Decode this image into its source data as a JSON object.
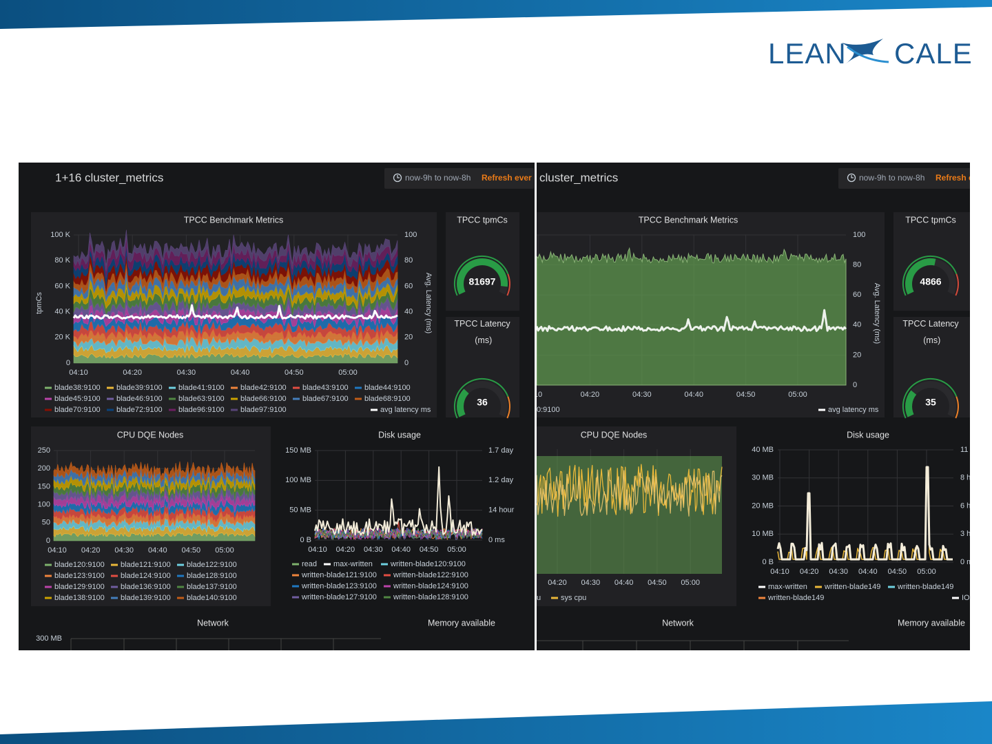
{
  "logo": {
    "left": "LEAN",
    "right": "CALE"
  },
  "dashboards": [
    {
      "title": "1+16 cluster_metrics",
      "time_range": "now-9h to now-8h",
      "refresh": "Refresh ever",
      "benchmark": {
        "title": "TPCC Benchmark Metrics",
        "y_label": "tpmCs",
        "y2_label": "Avg. Latency (ms)",
        "yticks": [
          "100 K",
          "80 K",
          "60 K",
          "40 K",
          "20 K",
          0
        ],
        "y2ticks": [
          100,
          80,
          60,
          40,
          20,
          0
        ],
        "xticks": [
          "04:10",
          "04:20",
          "04:30",
          "04:40",
          "04:50",
          "05:00"
        ],
        "legend": [
          {
            "name": "blade38:9100",
            "color": "#7eb26d"
          },
          {
            "name": "blade39:9100",
            "color": "#eab839"
          },
          {
            "name": "blade41:9100",
            "color": "#6ed0e0"
          },
          {
            "name": "blade42:9100",
            "color": "#ef843c"
          },
          {
            "name": "blade43:9100",
            "color": "#e24d42"
          },
          {
            "name": "blade44:9100",
            "color": "#1f78c1"
          },
          {
            "name": "blade45:9100",
            "color": "#ba43a9"
          },
          {
            "name": "blade46:9100",
            "color": "#705da0"
          },
          {
            "name": "blade63:9100",
            "color": "#508642"
          },
          {
            "name": "blade66:9100",
            "color": "#cca300"
          },
          {
            "name": "blade67:9100",
            "color": "#447ebc"
          },
          {
            "name": "blade68:9100",
            "color": "#c15c17"
          },
          {
            "name": "blade70:9100",
            "color": "#890f02"
          },
          {
            "name": "blade72:9100",
            "color": "#0a437c"
          },
          {
            "name": "blade96:9100",
            "color": "#6d1f62"
          },
          {
            "name": "blade97:9100",
            "color": "#584477"
          },
          {
            "name": "avg latency ms",
            "color": "#ffffff"
          }
        ]
      },
      "gauges": [
        {
          "title": "TPCC tpmCs",
          "value": 81697
        },
        {
          "title": "TPCC Latency (ms)",
          "value": 36
        }
      ],
      "cpu": {
        "title": "CPU DQE Nodes",
        "yticks": [
          250,
          200,
          150,
          100,
          50,
          0
        ],
        "xticks": [
          "04:10",
          "04:20",
          "04:30",
          "04:40",
          "04:50",
          "05:00"
        ],
        "legend": [
          {
            "name": "blade120:9100",
            "color": "#7eb26d"
          },
          {
            "name": "blade121:9100",
            "color": "#eab839"
          },
          {
            "name": "blade122:9100",
            "color": "#6ed0e0"
          },
          {
            "name": "blade123:9100",
            "color": "#ef843c"
          },
          {
            "name": "blade124:9100",
            "color": "#e24d42"
          },
          {
            "name": "blade128:9100",
            "color": "#1f78c1"
          },
          {
            "name": "blade129:9100",
            "color": "#ba43a9"
          },
          {
            "name": "blade136:9100",
            "color": "#705da0"
          },
          {
            "name": "blade137:9100",
            "color": "#508642"
          },
          {
            "name": "blade138:9100",
            "color": "#cca300"
          },
          {
            "name": "blade139:9100",
            "color": "#447ebc"
          },
          {
            "name": "blade140:9100",
            "color": "#c15c17"
          }
        ]
      },
      "disk": {
        "title": "Disk usage",
        "yticks": [
          "150 MB",
          "100 MB",
          "50 MB",
          "0 B"
        ],
        "y2ticks": [
          "1.7 day",
          "1.2 day",
          "14 hour",
          "0 ms"
        ],
        "xticks": [
          "04:10",
          "04:20",
          "04:30",
          "04:40",
          "04:50",
          "05:00"
        ],
        "legend": [
          {
            "name": "read",
            "color": "#7eb26d"
          },
          {
            "name": "max-written",
            "color": "#ffffff"
          },
          {
            "name": "written-blade120:9100",
            "color": "#6ed0e0"
          },
          {
            "name": "written-blade121:9100",
            "color": "#ef843c"
          },
          {
            "name": "written-blade122:9100",
            "color": "#e24d42"
          },
          {
            "name": "written-blade123:9100",
            "color": "#1f78c1"
          },
          {
            "name": "written-blade124:9100",
            "color": "#ba43a9"
          },
          {
            "name": "written-blade127:9100",
            "color": "#705da0"
          },
          {
            "name": "written-blade128:9100",
            "color": "#508642"
          }
        ]
      },
      "network": {
        "title": "Network",
        "yticks": [
          "300 MB"
        ]
      },
      "memory": {
        "title": "Memory available"
      }
    },
    {
      "title": "cluster_metrics",
      "time_range": "now-9h to now-8h",
      "refresh": "Refresh e",
      "benchmark": {
        "title": "TPCC Benchmark Metrics",
        "y2_label": "Avg. Latency (ms)",
        "y2ticks": [
          100,
          80,
          60,
          40,
          20,
          0
        ],
        "xticks": [
          "10",
          "04:20",
          "04:30",
          "04:40",
          "04:50",
          "05:00"
        ],
        "legend": [
          {
            "name": "0:9100",
            "color": "#629e51"
          },
          {
            "name": "avg latency ms",
            "color": "#ffffff"
          }
        ]
      },
      "gauges": [
        {
          "title": "TPCC tpmCs",
          "value": 4866
        },
        {
          "title": "TPCC Latency (ms)",
          "value": 35
        }
      ],
      "cpu": {
        "title": "CPU DQE Nodes",
        "xticks": [
          "04:20",
          "04:30",
          "04:40",
          "04:50",
          "05:00"
        ],
        "legend": [
          {
            "name": "u",
            "color": "#629e51"
          },
          {
            "name": "sys cpu",
            "color": "#eab839"
          }
        ]
      },
      "disk": {
        "title": "Disk usage",
        "yticks": [
          "40 MB",
          "30 MB",
          "20 MB",
          "10 MB",
          "0 B"
        ],
        "y2ticks": [
          "11",
          "8 h",
          "6 h",
          "3 h",
          "0 m"
        ],
        "xticks": [
          "04:10",
          "04:20",
          "04:30",
          "04:40",
          "04:50",
          "05:00"
        ],
        "legend": [
          {
            "name": "max-written",
            "color": "#ffffff"
          },
          {
            "name": "written-blade149",
            "color": "#eab839"
          },
          {
            "name": "written-blade149",
            "color": "#6ed0e0"
          },
          {
            "name": "written-blade149",
            "color": "#ef843c"
          },
          {
            "name": "IO",
            "color": "#ffffff"
          }
        ]
      },
      "network": {
        "title": "Network"
      },
      "memory": {
        "title": "Memory available"
      }
    }
  ]
}
